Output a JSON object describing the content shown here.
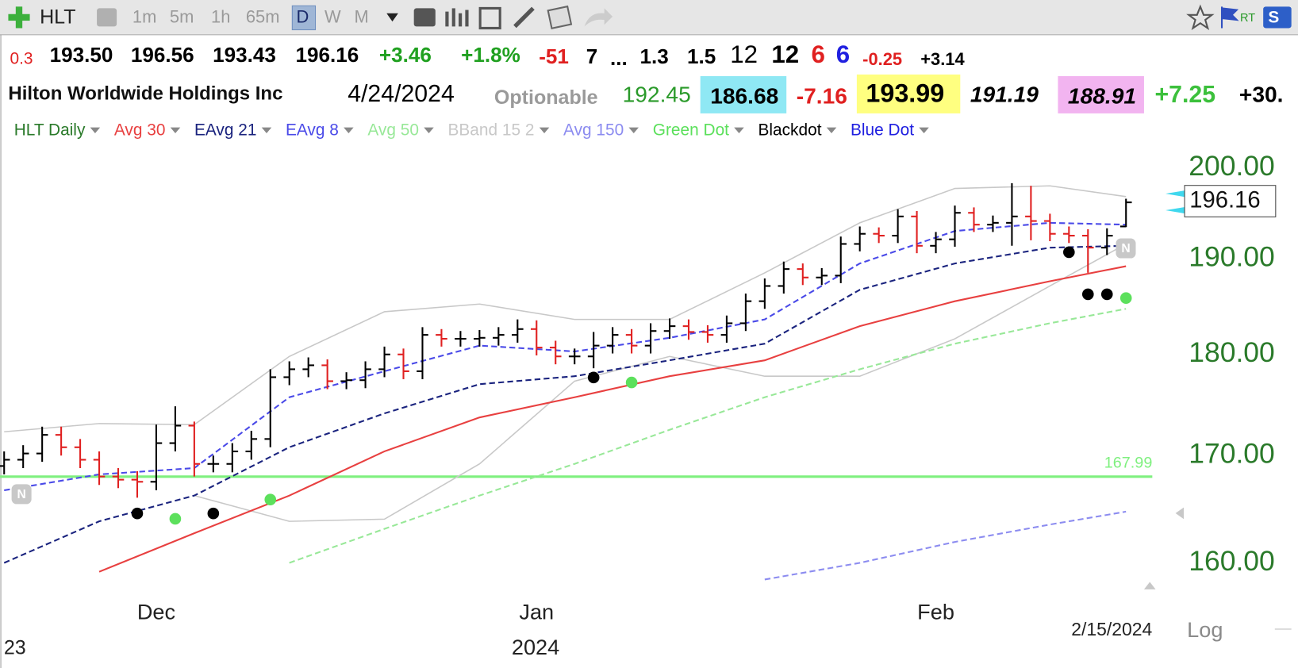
{
  "toolbar": {
    "symbol": "HLT",
    "intervals": [
      "1m",
      "5m",
      "1h",
      "65m",
      "D",
      "W",
      "M"
    ],
    "rt": "RT",
    "s": "S"
  },
  "quote_row": [
    "0.3",
    "193.50",
    "196.56",
    "193.43",
    "196.16",
    "+3.46",
    "+1.8%",
    "-51",
    "7",
    "...",
    "1.3",
    "1.5",
    "12",
    "12",
    "6",
    "6",
    "-0.25",
    "+3.14"
  ],
  "info_row": {
    "name": "Hilton Worldwide Holdings Inc",
    "date": "4/24/2024",
    "optionable": "Optionable",
    "values": [
      "192.45",
      "186.68",
      "-7.16",
      "193.99",
      "191.19",
      "188.91",
      "+7.25",
      "+30."
    ]
  },
  "news_badge": "N",
  "chart_data": {
    "type": "ohlc",
    "log": true,
    "grid": false,
    "categories": [
      null,
      null,
      null,
      null,
      null,
      null,
      null,
      null,
      "Dec",
      null,
      null,
      null,
      null,
      null,
      null,
      null,
      null,
      null,
      null,
      null,
      null,
      null,
      null,
      null,
      null,
      null,
      null,
      null,
      "Jan",
      null,
      null,
      null,
      null,
      null,
      null,
      null,
      null,
      null,
      null,
      null,
      null,
      null,
      null,
      null,
      null,
      null,
      null,
      null,
      null,
      "Feb",
      null,
      null,
      null,
      null,
      null,
      null,
      null,
      null,
      null,
      null
    ],
    "year_labels": [
      "23",
      "2024"
    ],
    "cursor_date": "2/15/2024",
    "scale_label": "Log",
    "ylim": [
      157.03,
      201.69
    ],
    "yticks": [
      {
        "value": 160,
        "label": "160.00"
      },
      {
        "value": 170,
        "label": "170.00"
      },
      {
        "value": 180,
        "label": "180.00"
      },
      {
        "value": 190,
        "label": "190.00"
      },
      {
        "value": 200,
        "label": "200.00"
      }
    ],
    "hline": {
      "value": 167.99,
      "color": "#7ff07f"
    },
    "series": [
      {
        "name": "HLT Daily",
        "kind": "ohlc",
        "color": "#2a7a2a",
        "up_color": "#000000",
        "down_color": "#e02020",
        "open": [
          169.0,
          169.6,
          170.2,
          172.0,
          170.8,
          169.6,
          168.0,
          167.7,
          167.5,
          171.2,
          172.9,
          169.2,
          169.2,
          170.4,
          171.6,
          177.7,
          178.5,
          178.9,
          177.3,
          177.4,
          178.5,
          180.0,
          178.3,
          182.0,
          181.6,
          181.6,
          181.7,
          182.0,
          182.6,
          180.7,
          179.8,
          179.8,
          180.9,
          182.0,
          180.9,
          182.4,
          182.9,
          182.3,
          182.0,
          183.2,
          185.5,
          187.1,
          188.9,
          188.0,
          188.2,
          191.6,
          192.7,
          192.5,
          194.6,
          191.4,
          192.1,
          195.0,
          193.7,
          193.9,
          194.6,
          194.1,
          192.7,
          192.5,
          191.2,
          193.5
        ],
        "high": [
          170.4,
          171.0,
          172.8,
          172.8,
          171.6,
          170.4,
          168.8,
          168.5,
          173.0,
          174.8,
          173.3,
          170.0,
          171.2,
          172.4,
          178.5,
          179.3,
          179.7,
          179.5,
          178.2,
          179.3,
          180.8,
          180.6,
          182.8,
          182.6,
          182.4,
          182.5,
          182.8,
          183.6,
          183.5,
          181.4,
          180.6,
          182.3,
          182.8,
          182.6,
          183.2,
          183.7,
          183.6,
          183.0,
          184.0,
          186.3,
          187.9,
          189.7,
          189.5,
          189.0,
          192.4,
          193.5,
          193.4,
          195.4,
          195.2,
          192.9,
          195.8,
          195.6,
          194.7,
          198.3,
          198.0,
          194.9,
          193.5,
          193.2,
          193.3,
          196.56
        ],
        "low": [
          168.2,
          168.8,
          169.4,
          170.0,
          168.8,
          167.2,
          166.9,
          166.0,
          166.7,
          170.4,
          168.0,
          168.4,
          168.4,
          169.6,
          170.8,
          176.9,
          177.7,
          176.5,
          176.5,
          176.6,
          177.7,
          177.5,
          177.5,
          180.8,
          180.8,
          180.8,
          180.9,
          181.2,
          179.9,
          179.0,
          179.0,
          178.6,
          180.1,
          180.1,
          180.1,
          181.6,
          181.5,
          181.2,
          181.2,
          182.4,
          184.7,
          186.3,
          187.2,
          187.2,
          187.4,
          190.8,
          191.7,
          191.7,
          190.6,
          190.6,
          191.3,
          192.9,
          192.9,
          191.4,
          192.0,
          191.9,
          191.7,
          188.5,
          190.4,
          193.43
        ],
        "close": [
          169.6,
          170.2,
          172.0,
          170.8,
          169.6,
          168.0,
          167.7,
          167.5,
          171.2,
          172.9,
          169.2,
          169.2,
          170.4,
          171.6,
          177.7,
          178.5,
          178.9,
          177.3,
          177.4,
          178.5,
          180.0,
          178.3,
          182.0,
          181.6,
          181.6,
          181.7,
          182.0,
          182.6,
          180.7,
          179.8,
          179.8,
          180.9,
          182.0,
          180.9,
          182.4,
          182.9,
          182.3,
          182.0,
          183.2,
          185.5,
          187.1,
          188.9,
          188.0,
          188.2,
          191.6,
          192.7,
          192.5,
          194.6,
          191.4,
          192.1,
          195.0,
          193.7,
          193.9,
          194.6,
          194.1,
          192.7,
          192.5,
          191.2,
          192.5,
          196.16
        ]
      },
      {
        "name": "Avg 30",
        "kind": "line",
        "color": "#e84040",
        "dash": false,
        "x": [
          0,
          5,
          10,
          15,
          20,
          25,
          30,
          35,
          40,
          45,
          50,
          55,
          59
        ],
        "values": [
          null,
          159.2,
          162.7,
          166.2,
          170.4,
          173.7,
          175.7,
          177.8,
          179.4,
          182.9,
          185.5,
          187.6,
          189.2
        ]
      },
      {
        "name": "EAvg 21",
        "kind": "line",
        "color": "#1a237e",
        "dash": true,
        "x": [
          0,
          5,
          10,
          15,
          20,
          25,
          30,
          35,
          40,
          45,
          50,
          55,
          59
        ],
        "values": [
          160.0,
          163.8,
          166.2,
          170.8,
          174.1,
          177.0,
          177.8,
          179.4,
          181.1,
          186.7,
          189.5,
          191.2,
          191.4
        ]
      },
      {
        "name": "EAvg 8",
        "kind": "line",
        "color": "#4a4ae8",
        "dash": true,
        "x": [
          0,
          5,
          10,
          15,
          20,
          25,
          30,
          35,
          40,
          45,
          50,
          55,
          59
        ],
        "values": [
          166.7,
          168.2,
          168.8,
          175.7,
          178.3,
          180.9,
          180.3,
          181.7,
          183.6,
          189.5,
          193.0,
          193.9,
          193.7
        ]
      },
      {
        "name": "Avg 50",
        "kind": "line",
        "color": "#98e898",
        "dash": true,
        "x": [
          0,
          5,
          10,
          15,
          20,
          25,
          30,
          35,
          40,
          45,
          50,
          55,
          59
        ],
        "values": [
          null,
          null,
          null,
          160.0,
          163.1,
          166.2,
          169.2,
          172.5,
          175.7,
          178.5,
          181.1,
          183.2,
          184.7
        ]
      },
      {
        "name": "BBand 15 2",
        "kind": "band",
        "color": "#c8c8c8",
        "x": [
          0,
          5,
          10,
          15,
          20,
          25,
          30,
          35,
          40,
          45,
          50,
          55,
          59
        ],
        "upper": [
          172.3,
          173.1,
          173.0,
          179.8,
          184.4,
          185.2,
          183.6,
          183.6,
          188.5,
          193.9,
          197.7,
          198.0,
          196.8
        ],
        "lower": [
          null,
          null,
          166.2,
          163.8,
          164.0,
          169.2,
          177.3,
          179.8,
          177.8,
          177.8,
          181.6,
          187.1,
          191.6
        ]
      },
      {
        "name": "Avg 150",
        "kind": "line",
        "color": "#8c8cf0",
        "dash": true,
        "x": [
          40,
          45,
          50,
          55,
          59
        ],
        "values": [
          158.5,
          160.0,
          161.9,
          163.5,
          164.7
        ]
      },
      {
        "name": "Green Dot",
        "kind": "dots",
        "color": "#5ce05c",
        "x": [
          9,
          14,
          33,
          59
        ],
        "values": [
          164.8,
          166.6,
          178.0,
          186.7
        ]
      },
      {
        "name": "Blackdot",
        "kind": "dots",
        "color": "#000000",
        "x": [
          7,
          11,
          31,
          56,
          57,
          58
        ],
        "values": [
          165.3,
          165.3,
          178.5,
          191.6,
          187.1,
          187.1
        ]
      },
      {
        "name": "Blue Dot",
        "kind": "dots",
        "color": "#2020e0",
        "x": [],
        "values": []
      }
    ]
  }
}
